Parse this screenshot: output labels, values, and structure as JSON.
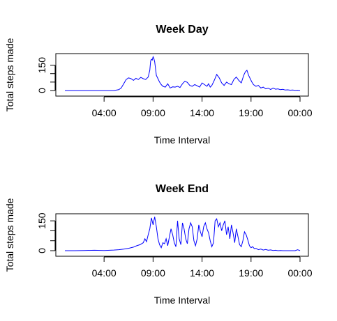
{
  "chart_data": [
    {
      "type": "line",
      "title": "Week Day",
      "xlabel": "Time Interval",
      "ylabel": "Total steps made",
      "xlim": [
        0,
        1440
      ],
      "ylim": [
        0,
        206
      ],
      "x_ticks": [
        {
          "value": 240,
          "label": "04:00"
        },
        {
          "value": 540,
          "label": "09:00"
        },
        {
          "value": 840,
          "label": "14:00"
        },
        {
          "value": 1140,
          "label": "19:00"
        },
        {
          "value": 1440,
          "label": "00:00"
        }
      ],
      "y_ticks": [
        {
          "value": 0,
          "label": "0"
        },
        {
          "value": 50,
          "label": ""
        },
        {
          "value": 100,
          "label": ""
        },
        {
          "value": 150,
          "label": "150"
        }
      ],
      "color": "#0000ff",
      "series": [
        {
          "x": [
            0,
            60,
            120,
            180,
            240,
            300,
            330,
            345,
            360,
            375,
            390,
            405,
            420,
            435,
            450,
            465,
            480,
            495,
            510,
            520,
            525,
            530,
            535,
            540,
            545,
            550,
            555,
            560,
            570,
            580,
            590,
            600,
            615,
            630,
            645,
            660,
            675,
            690,
            705,
            720,
            735,
            750,
            765,
            780,
            795,
            810,
            825,
            840,
            855,
            870,
            880,
            890,
            900,
            915,
            930,
            945,
            960,
            975,
            990,
            1005,
            1020,
            1035,
            1050,
            1065,
            1080,
            1095,
            1105,
            1115,
            1125,
            1135,
            1145,
            1155,
            1170,
            1185,
            1200,
            1215,
            1230,
            1245,
            1260,
            1275,
            1290,
            1305,
            1320,
            1335,
            1350,
            1365,
            1380,
            1395,
            1410,
            1425,
            1440
          ],
          "y": [
            0,
            0,
            0,
            0,
            0,
            0,
            5,
            15,
            40,
            65,
            75,
            70,
            60,
            72,
            65,
            78,
            70,
            65,
            80,
            120,
            175,
            185,
            180,
            200,
            190,
            170,
            130,
            90,
            70,
            50,
            35,
            25,
            20,
            40,
            15,
            22,
            20,
            25,
            18,
            40,
            55,
            48,
            30,
            25,
            35,
            28,
            20,
            45,
            35,
            25,
            40,
            20,
            30,
            60,
            95,
            75,
            45,
            30,
            50,
            40,
            35,
            65,
            80,
            60,
            45,
            90,
            110,
            120,
            90,
            70,
            50,
            35,
            25,
            30,
            15,
            20,
            10,
            14,
            6,
            15,
            8,
            10,
            5,
            7,
            3,
            4,
            2,
            3,
            1,
            2,
            0
          ]
        }
      ]
    },
    {
      "type": "line",
      "title": "Week End",
      "xlabel": "Time Interval",
      "ylabel": "Total steps made",
      "xlim": [
        0,
        1440
      ],
      "ylim": [
        0,
        175
      ],
      "x_ticks": [
        {
          "value": 240,
          "label": "04:00"
        },
        {
          "value": 540,
          "label": "09:00"
        },
        {
          "value": 840,
          "label": "14:00"
        },
        {
          "value": 1140,
          "label": "19:00"
        },
        {
          "value": 1440,
          "label": "00:00"
        }
      ],
      "y_ticks": [
        {
          "value": 0,
          "label": "0"
        },
        {
          "value": 50,
          "label": ""
        },
        {
          "value": 100,
          "label": ""
        },
        {
          "value": 150,
          "label": "150"
        }
      ],
      "color": "#0000ff",
      "series": [
        {
          "x": [
            0,
            60,
            120,
            180,
            240,
            300,
            330,
            360,
            390,
            420,
            440,
            460,
            480,
            490,
            500,
            510,
            520,
            530,
            540,
            550,
            560,
            570,
            580,
            590,
            600,
            610,
            620,
            630,
            640,
            650,
            660,
            670,
            680,
            690,
            700,
            710,
            720,
            730,
            740,
            750,
            760,
            770,
            780,
            790,
            800,
            810,
            820,
            830,
            840,
            850,
            860,
            870,
            880,
            890,
            900,
            910,
            920,
            930,
            940,
            950,
            960,
            970,
            980,
            990,
            1000,
            1010,
            1020,
            1030,
            1040,
            1050,
            1060,
            1070,
            1080,
            1090,
            1100,
            1110,
            1120,
            1130,
            1140,
            1150,
            1160,
            1170,
            1185,
            1200,
            1215,
            1230,
            1245,
            1260,
            1275,
            1290,
            1305,
            1320,
            1335,
            1350,
            1365,
            1380,
            1395,
            1410,
            1425,
            1435,
            1440
          ],
          "y": [
            0,
            0,
            1,
            2,
            1,
            3,
            5,
            8,
            12,
            18,
            25,
            30,
            40,
            60,
            45,
            80,
            110,
            165,
            130,
            170,
            120,
            60,
            30,
            15,
            40,
            35,
            60,
            25,
            70,
            110,
            80,
            40,
            20,
            150,
            60,
            30,
            140,
            110,
            60,
            35,
            110,
            140,
            120,
            50,
            25,
            60,
            130,
            95,
            70,
            120,
            140,
            110,
            90,
            50,
            20,
            40,
            150,
            160,
            120,
            140,
            100,
            130,
            150,
            80,
            120,
            60,
            130,
            90,
            40,
            110,
            70,
            30,
            20,
            50,
            95,
            80,
            55,
            25,
            15,
            20,
            10,
            12,
            5,
            8,
            3,
            6,
            2,
            4,
            1,
            2,
            0,
            1,
            0,
            0,
            0,
            0,
            0,
            0,
            5,
            2,
            0
          ]
        }
      ]
    }
  ]
}
